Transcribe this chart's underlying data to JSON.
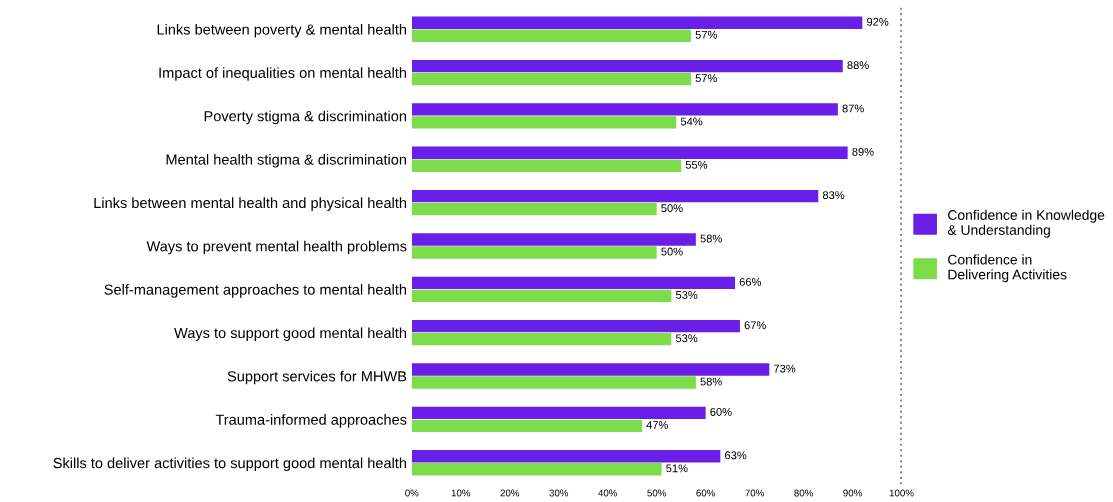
{
  "chart_data": {
    "type": "bar",
    "orientation": "horizontal",
    "categories": [
      "Links between poverty & mental health",
      "Impact of inequalities on mental health",
      "Poverty stigma & discrimination",
      "Mental health stigma & discrimination",
      "Links between mental health and physical health",
      "Ways to prevent mental health problems",
      "Self-management approaches to mental health",
      "Ways to support good mental health",
      "Support services for MHWB",
      "Trauma-informed approaches",
      "Skills to deliver activities to support good mental health"
    ],
    "series": [
      {
        "name": "Confidence in Knowledge & Understanding",
        "color": "#6a1fe8",
        "values": [
          92,
          88,
          87,
          89,
          83,
          58,
          66,
          67,
          73,
          60,
          63
        ],
        "value_labels": [
          "92%",
          "88%",
          "87%",
          "89%",
          "83%",
          "58%",
          "66%",
          "67%",
          "73%",
          "60%",
          "63%"
        ]
      },
      {
        "name": "Confidence in Delivering Activities",
        "color": "#7cdc4a",
        "values": [
          57,
          57,
          54,
          55,
          50,
          50,
          53,
          53,
          58,
          47,
          51
        ],
        "value_labels": [
          "57%",
          "57%",
          "54%",
          "55%",
          "50%",
          "50%",
          "53%",
          "53%",
          "58%",
          "47%",
          "51%"
        ]
      }
    ],
    "xlim": [
      0,
      100
    ],
    "xticks": [
      {
        "value": 0,
        "label": "0%"
      },
      {
        "value": 10,
        "label": "10%"
      },
      {
        "value": 20,
        "label": "20%"
      },
      {
        "value": 30,
        "label": "30%"
      },
      {
        "value": 40,
        "label": "40%"
      },
      {
        "value": 50,
        "label": "50%"
      },
      {
        "value": 60,
        "label": "60%"
      },
      {
        "value": 70,
        "label": "70%"
      },
      {
        "value": 80,
        "label": "80%"
      },
      {
        "value": 90,
        "label": "90%"
      },
      {
        "value": 100,
        "label": "100%"
      }
    ],
    "ref_lines": [
      {
        "axis": "x",
        "value": 100,
        "line_style": "dotted",
        "color": "#222222"
      }
    ],
    "legend": "right",
    "grid": false
  }
}
